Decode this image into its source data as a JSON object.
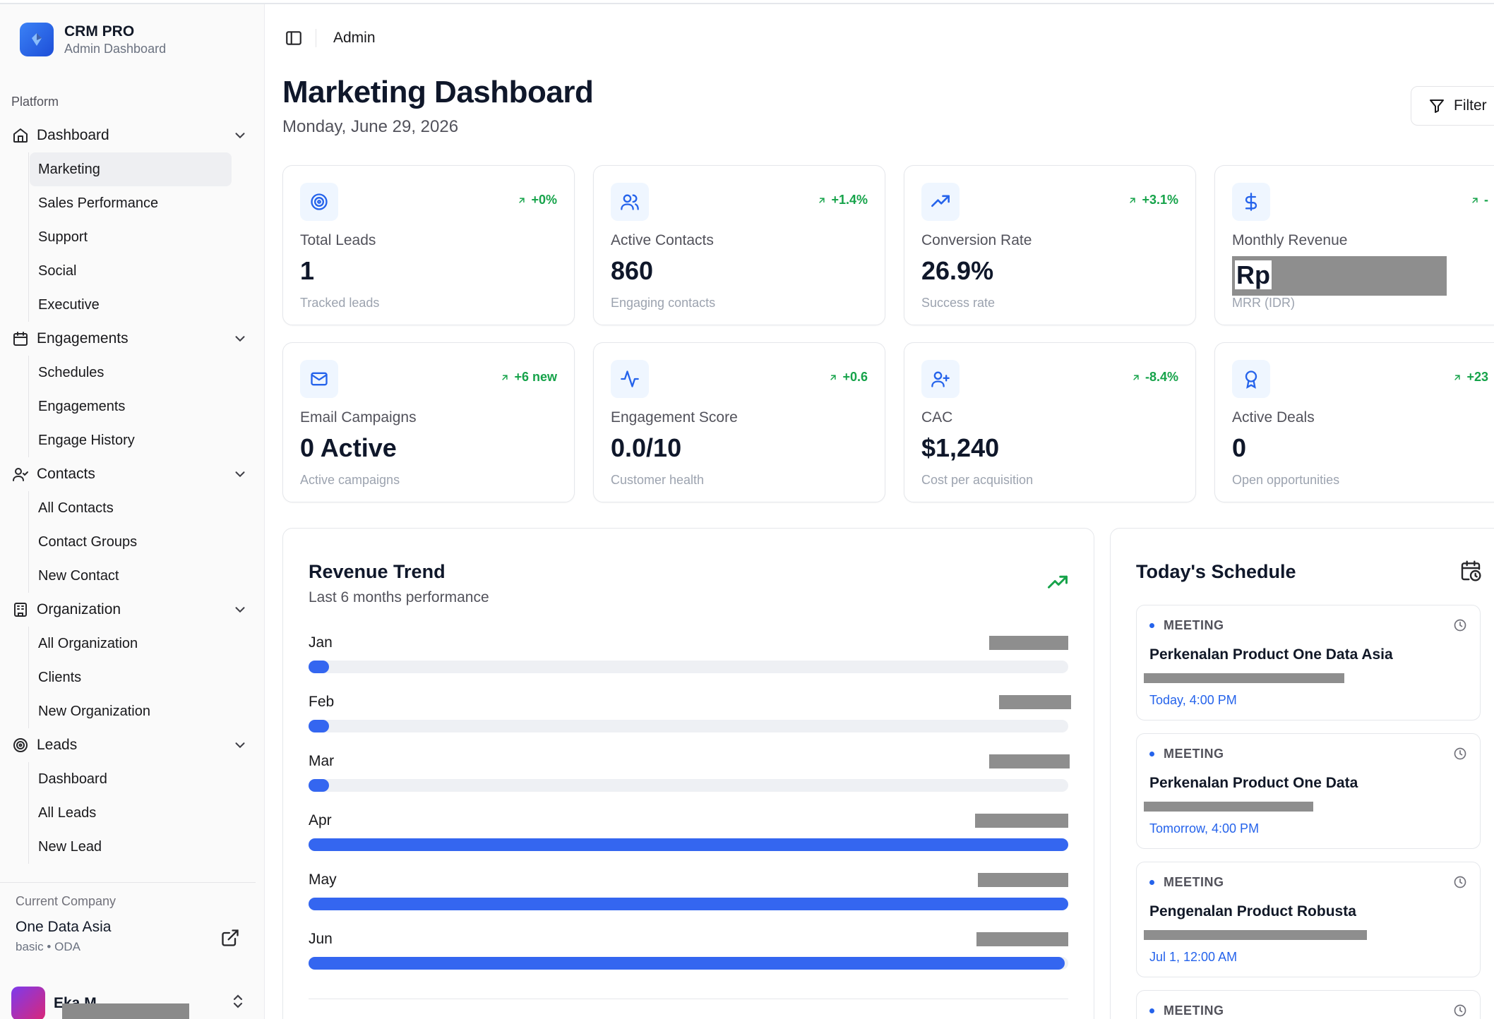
{
  "sidebar": {
    "brand_name": "CRM PRO",
    "brand_sub": "Admin Dashboard",
    "platform_label": "Platform",
    "groups": [
      {
        "label": "Dashboard",
        "icon": "home-icon",
        "items": [
          {
            "label": "Marketing",
            "active": true
          },
          {
            "label": "Sales Performance"
          },
          {
            "label": "Support"
          },
          {
            "label": "Social"
          },
          {
            "label": "Executive"
          }
        ]
      },
      {
        "label": "Engagements",
        "icon": "calendar-icon",
        "items": [
          {
            "label": "Schedules"
          },
          {
            "label": "Engagements"
          },
          {
            "label": "Engage History"
          }
        ]
      },
      {
        "label": "Contacts",
        "icon": "user-check-icon",
        "items": [
          {
            "label": "All Contacts"
          },
          {
            "label": "Contact Groups"
          },
          {
            "label": "New Contact"
          }
        ]
      },
      {
        "label": "Organization",
        "icon": "building-icon",
        "items": [
          {
            "label": "All Organization"
          },
          {
            "label": "Clients"
          },
          {
            "label": "New Organization"
          }
        ]
      },
      {
        "label": "Leads",
        "icon": "target-icon",
        "items": [
          {
            "label": "Dashboard"
          },
          {
            "label": "All Leads"
          },
          {
            "label": "New Lead"
          }
        ]
      }
    ],
    "company": {
      "label": "Current Company",
      "name": "One Data Asia",
      "plan": "basic",
      "code": "ODA"
    },
    "user": {
      "name": "Eka M"
    }
  },
  "header": {
    "breadcrumb": "Admin"
  },
  "page": {
    "title": "Marketing Dashboard",
    "date": "Monday, June 29, 2026",
    "filter_label": "Filter"
  },
  "stats": [
    {
      "label": "Total Leads",
      "value": "1",
      "caption": "Tracked leads",
      "trend": "+0%",
      "icon": "target-icon"
    },
    {
      "label": "Active Contacts",
      "value": "860",
      "caption": "Engaging contacts",
      "trend": "+1.4%",
      "icon": "users-icon"
    },
    {
      "label": "Conversion Rate",
      "value": "26.9%",
      "caption": "Success rate",
      "trend": "+3.1%",
      "icon": "trending-up-icon"
    },
    {
      "label": "Monthly Revenue",
      "value": "Rp",
      "caption": "MRR (IDR)",
      "trend": "-",
      "icon": "dollar-icon"
    },
    {
      "label": "Email Campaigns",
      "value": "0 Active",
      "caption": "Active campaigns",
      "trend": "+6 new",
      "icon": "mail-icon"
    },
    {
      "label": "Engagement Score",
      "value": "0.0/10",
      "caption": "Customer health",
      "trend": "+0.6",
      "icon": "activity-icon"
    },
    {
      "label": "CAC",
      "value": "$1,240",
      "caption": "Cost per acquisition",
      "trend": "-8.4%",
      "icon": "user-plus-icon"
    },
    {
      "label": "Active Deals",
      "value": "0",
      "caption": "Open opportunities",
      "trend": "+23",
      "icon": "award-icon"
    }
  ],
  "revenue": {
    "title": "Revenue Trend",
    "subtitle": "Last 6 months performance",
    "months": [
      {
        "label": "Jan",
        "progress": 0.02
      },
      {
        "label": "Feb",
        "progress": 0.02
      },
      {
        "label": "Mar",
        "progress": 0.02
      },
      {
        "label": "Apr",
        "progress": 1.0
      },
      {
        "label": "May",
        "progress": 1.0
      },
      {
        "label": "Jun",
        "progress": 0.995
      }
    ]
  },
  "schedule": {
    "title": "Today's Schedule",
    "events": [
      {
        "type": "MEETING",
        "title": "Perkenalan Product One Data Asia",
        "time": "Today, 4:00 PM"
      },
      {
        "type": "MEETING",
        "title": "Perkenalan Product One Data",
        "time": "Tomorrow, 4:00 PM"
      },
      {
        "type": "MEETING",
        "title": "Pengenalan Product Robusta",
        "time": "Jul 1, 12:00 AM"
      },
      {
        "type": "MEETING"
      }
    ]
  },
  "colors": {
    "accent": "#3466f0",
    "positive": "#16a34a",
    "icon_bg": "#eff6ff"
  }
}
